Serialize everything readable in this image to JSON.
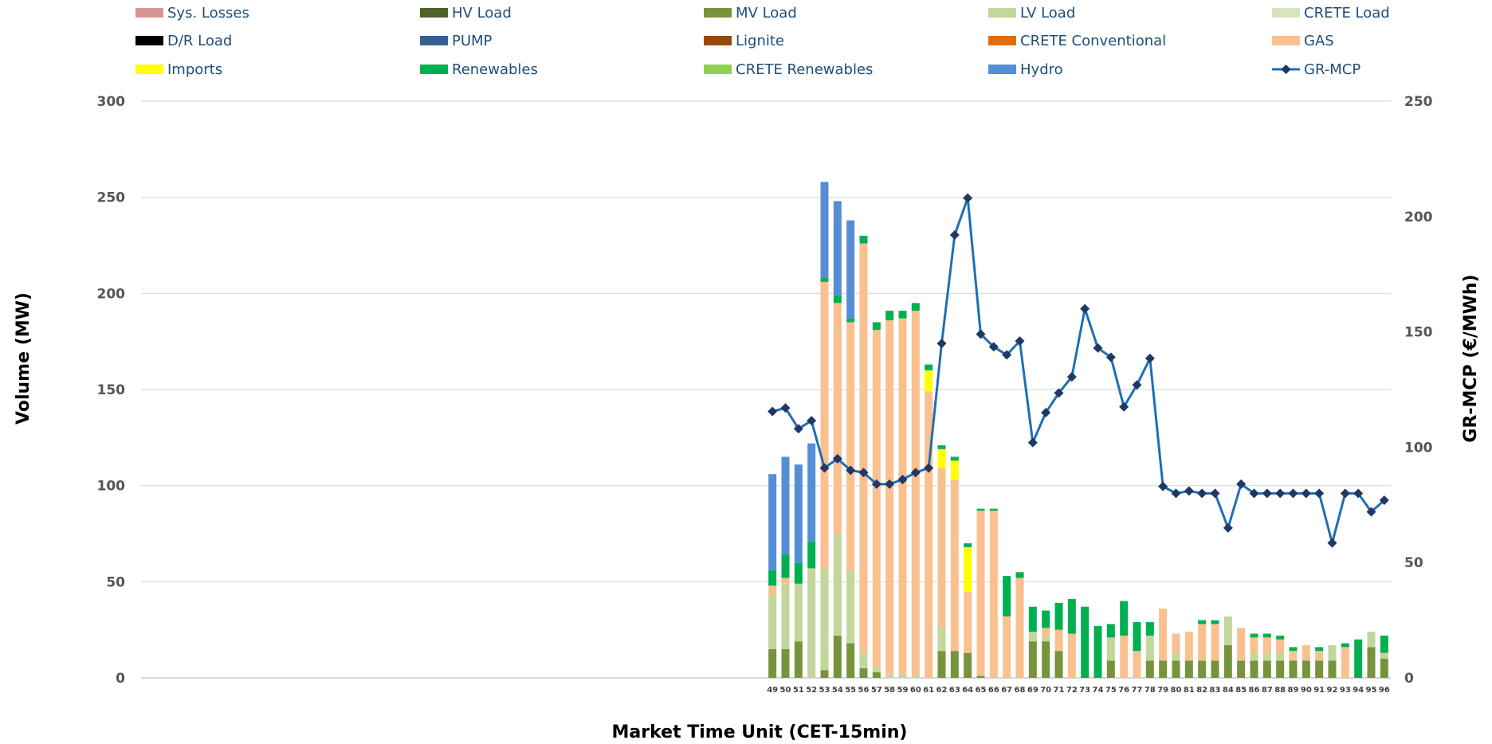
{
  "chart_data": {
    "type": "bar",
    "stacked": true,
    "xlabel": "Market Time Unit (CET-15min)",
    "ylabel": "Volume (MW)",
    "y2label": "GR-MCP (€/MWh)",
    "ylim": [
      0,
      300
    ],
    "y2lim": [
      0,
      250
    ],
    "yticks": [
      0,
      50,
      100,
      150,
      200,
      250,
      300
    ],
    "y2ticks": [
      0,
      50,
      100,
      150,
      200,
      250
    ],
    "grid": true,
    "legend_position": "top",
    "x_slots_total": 96,
    "categories": [
      "49",
      "50",
      "51",
      "52",
      "53",
      "54",
      "55",
      "56",
      "57",
      "58",
      "59",
      "60",
      "61",
      "62",
      "63",
      "64",
      "65",
      "66",
      "67",
      "68",
      "69",
      "70",
      "71",
      "72",
      "73",
      "74",
      "75",
      "76",
      "77",
      "78",
      "79",
      "80",
      "81",
      "82",
      "83",
      "84",
      "85",
      "86",
      "87",
      "88",
      "89",
      "90",
      "91",
      "92",
      "93",
      "94",
      "95",
      "96"
    ],
    "legend": [
      {
        "name": "Sys. Losses",
        "color": "#d99694",
        "kind": "bar"
      },
      {
        "name": "HV Load",
        "color": "#4f6228",
        "kind": "bar"
      },
      {
        "name": "MV Load",
        "color": "#77933c",
        "kind": "bar"
      },
      {
        "name": "LV Load",
        "color": "#c3d69b",
        "kind": "bar"
      },
      {
        "name": "CRETE Load",
        "color": "#d7e4bd",
        "kind": "bar"
      },
      {
        "name": "D/R Load",
        "color": "#000000",
        "kind": "bar"
      },
      {
        "name": "PUMP",
        "color": "#366092",
        "kind": "bar"
      },
      {
        "name": "Lignite",
        "color": "#984807",
        "kind": "bar"
      },
      {
        "name": "CRETE Conventional",
        "color": "#e46c0a",
        "kind": "bar"
      },
      {
        "name": "GAS",
        "color": "#fac090",
        "kind": "bar"
      },
      {
        "name": "Imports",
        "color": "#ffff00",
        "kind": "bar"
      },
      {
        "name": "Renewables",
        "color": "#00b050",
        "kind": "bar"
      },
      {
        "name": "CRETE Renewables",
        "color": "#92d050",
        "kind": "bar"
      },
      {
        "name": "Hydro",
        "color": "#558ed5",
        "kind": "bar"
      },
      {
        "name": "GR-MCP",
        "color": "#1f6fb4",
        "kind": "line",
        "marker_color": "#1f3864"
      }
    ],
    "series": [
      {
        "name": "MV Load",
        "color": "#77933c",
        "values": [
          15,
          15,
          19,
          0,
          4,
          22,
          18,
          5,
          3,
          0,
          0,
          0,
          0,
          14,
          14,
          13,
          1,
          0,
          0,
          0,
          19,
          19,
          14,
          0,
          0,
          0,
          9,
          0,
          0,
          9,
          9,
          9,
          9,
          9,
          9,
          17,
          9,
          9,
          9,
          9,
          9,
          9,
          9,
          9,
          0,
          0,
          16,
          10
        ]
      },
      {
        "name": "LV Load",
        "color": "#c3d69b",
        "values": [
          28,
          34,
          30,
          57,
          53,
          53,
          38,
          8,
          3,
          2,
          2,
          1,
          0,
          12,
          0,
          0,
          0,
          0,
          0,
          0,
          5,
          3,
          0,
          0,
          0,
          0,
          12,
          0,
          0,
          13,
          0,
          4,
          0,
          0,
          0,
          15,
          0,
          4,
          4,
          4,
          0,
          0,
          0,
          8,
          0,
          0,
          8,
          3
        ]
      },
      {
        "name": "GAS",
        "color": "#fac090",
        "values": [
          5,
          3,
          0,
          0,
          149,
          120,
          129,
          213,
          175,
          184,
          185,
          190,
          149,
          83,
          89,
          32,
          86,
          87,
          32,
          52,
          0,
          4,
          11,
          23,
          0,
          0,
          0,
          22,
          14,
          0,
          27,
          10,
          15,
          19,
          19,
          0,
          17,
          8,
          8,
          7,
          5,
          8,
          5,
          0,
          16,
          0,
          0,
          0
        ]
      },
      {
        "name": "Imports",
        "color": "#ffff00",
        "values": [
          0,
          0,
          0,
          0,
          0,
          0,
          0,
          0,
          0,
          0,
          0,
          0,
          11,
          10,
          10,
          23,
          0,
          0,
          0,
          0,
          0,
          0,
          0,
          0,
          0,
          0,
          0,
          0,
          0,
          0,
          0,
          0,
          0,
          0,
          0,
          0,
          0,
          0,
          0,
          0,
          0,
          0,
          0,
          0,
          0,
          0,
          0,
          0
        ]
      },
      {
        "name": "Renewables",
        "color": "#00b050",
        "values": [
          8,
          12,
          11,
          14,
          2,
          4,
          2,
          4,
          4,
          5,
          4,
          4,
          3,
          2,
          2,
          2,
          1,
          1,
          21,
          3,
          13,
          9,
          14,
          18,
          37,
          27,
          7,
          18,
          15,
          7,
          0,
          0,
          0,
          2,
          2,
          0,
          0,
          2,
          2,
          2,
          2,
          0,
          2,
          0,
          2,
          20,
          0,
          9
        ]
      },
      {
        "name": "Hydro",
        "color": "#558ed5",
        "values": [
          50,
          51,
          51,
          51,
          50,
          49,
          51,
          0,
          0,
          0,
          0,
          0,
          0,
          0,
          0,
          0,
          0,
          0,
          0,
          0,
          0,
          0,
          0,
          0,
          0,
          0,
          0,
          0,
          0,
          0,
          0,
          0,
          0,
          0,
          0,
          0,
          0,
          0,
          0,
          0,
          0,
          0,
          0,
          0,
          0,
          0,
          0,
          0
        ]
      }
    ],
    "line": {
      "name": "GR-MCP",
      "axis": "right",
      "values": [
        115.5,
        117,
        108,
        111.5,
        91,
        95,
        90,
        89,
        84,
        84,
        86,
        89,
        91,
        145,
        192,
        208,
        149,
        143.5,
        140,
        146,
        102,
        115,
        123.5,
        130.5,
        160,
        143,
        139,
        117.5,
        127,
        138.5,
        83,
        80,
        81,
        80,
        80,
        65,
        84,
        80,
        80,
        80,
        80,
        80,
        80,
        58.5,
        80,
        80,
        72,
        77
      ]
    }
  }
}
